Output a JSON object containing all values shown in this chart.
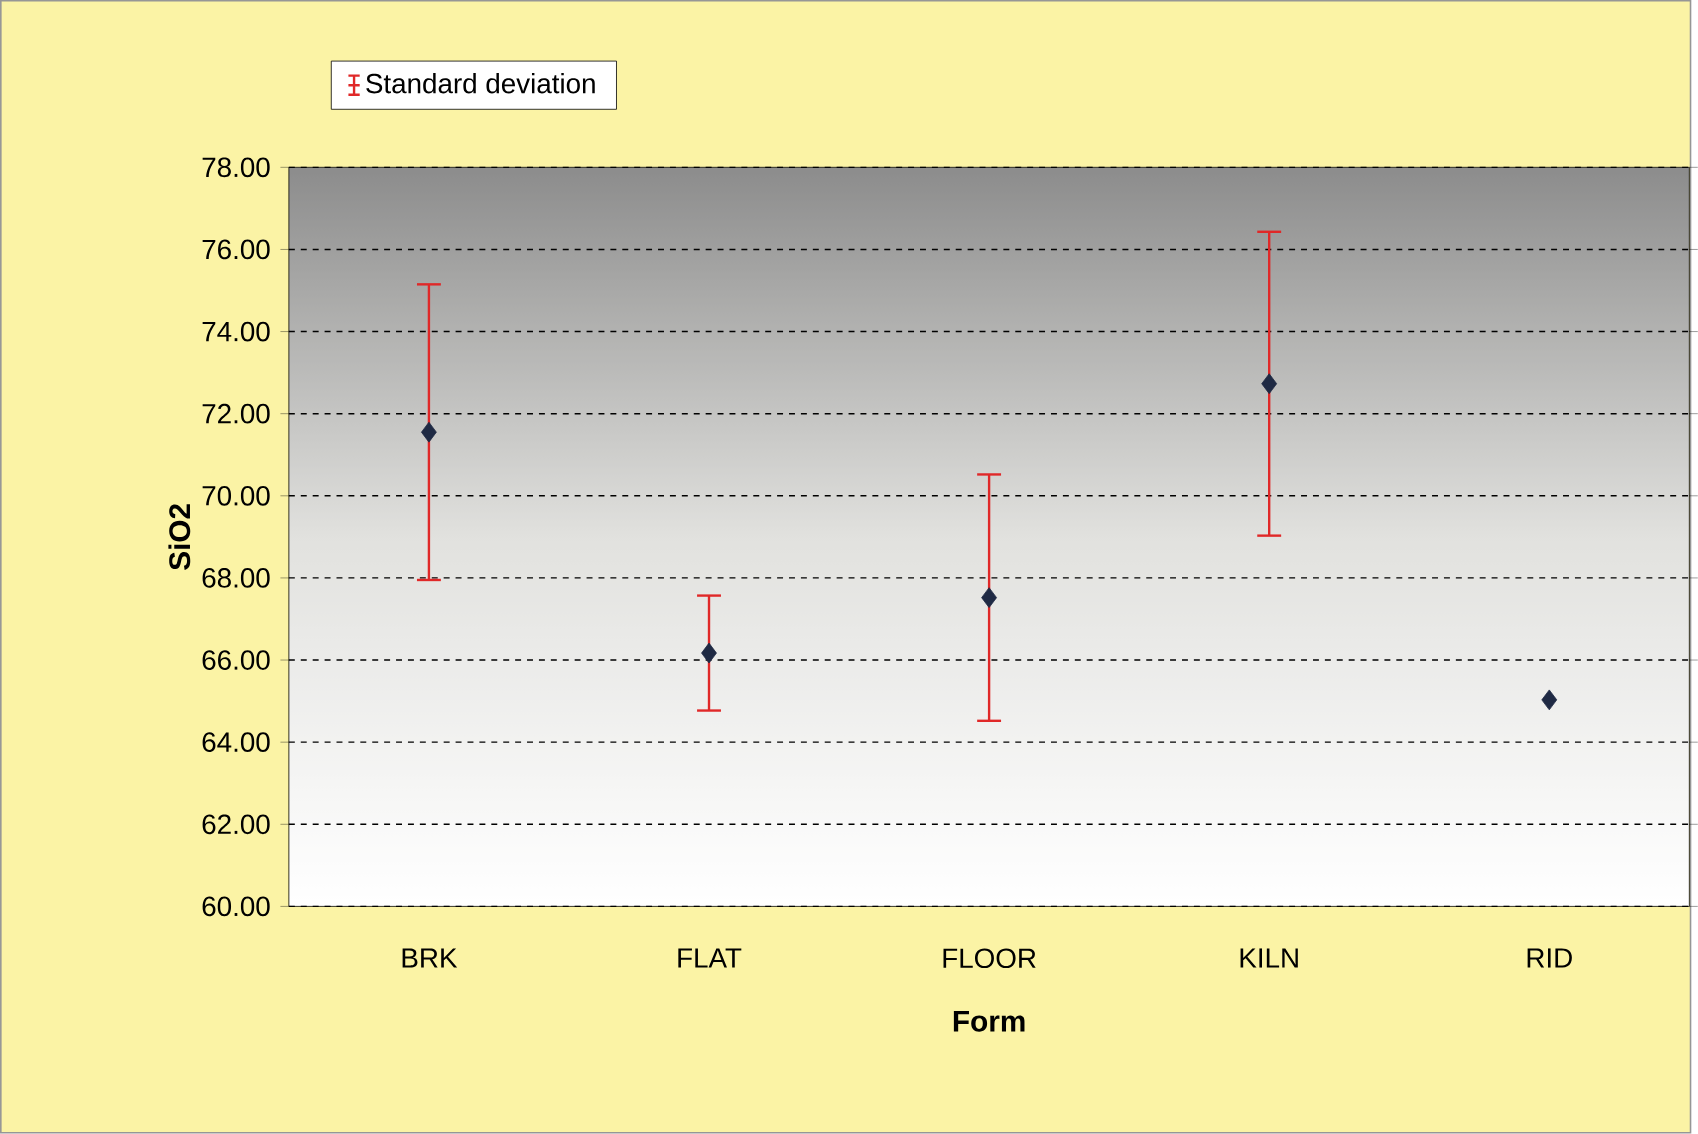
{
  "chart_data": {
    "type": "scatter",
    "xlabel": "Form",
    "ylabel": "SiO2",
    "categories": [
      "BRK",
      "FLAT",
      "FLOOR",
      "KILN",
      "RID"
    ],
    "series": [
      {
        "name": "Standard deviation",
        "color": "#1f2a44",
        "values": [
          71.55,
          66.17,
          67.52,
          72.73,
          65.03
        ],
        "errors": [
          3.6,
          1.4,
          3.0,
          3.7,
          null
        ]
      }
    ],
    "ylim": [
      60,
      78
    ],
    "yticks": [
      {
        "value": 60,
        "label": "60.00"
      },
      {
        "value": 62,
        "label": "62.00"
      },
      {
        "value": 64,
        "label": "64.00"
      },
      {
        "value": 66,
        "label": "66.00"
      },
      {
        "value": 68,
        "label": "68.00"
      },
      {
        "value": 70,
        "label": "70.00"
      },
      {
        "value": 72,
        "label": "72.00"
      },
      {
        "value": 74,
        "label": "74.00"
      },
      {
        "value": 76,
        "label": "76.00"
      },
      {
        "value": 78,
        "label": "78.00"
      }
    ],
    "grid": "y",
    "legend": "top left",
    "marker": "diamond"
  }
}
